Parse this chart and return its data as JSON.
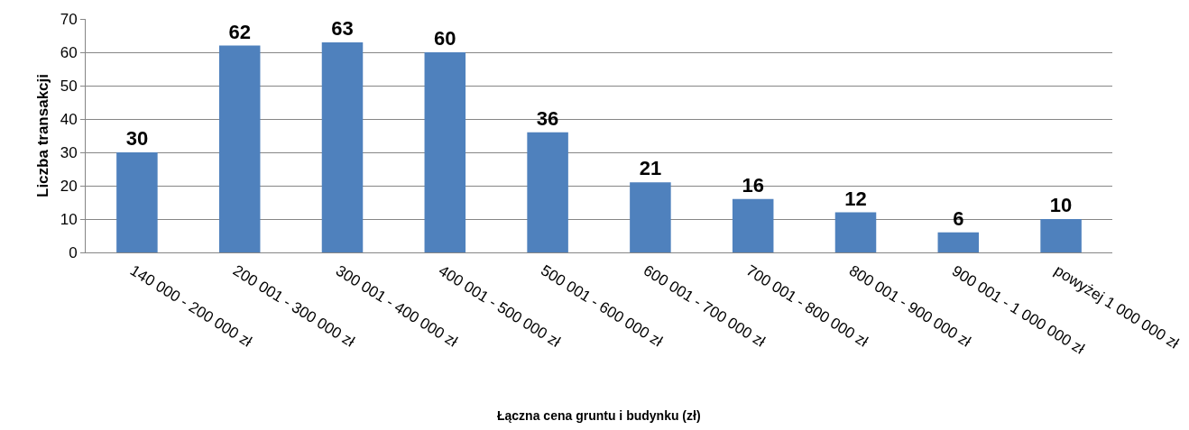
{
  "chart_data": {
    "type": "bar",
    "xlabel": "Łączna cena gruntu i budynku (zł)",
    "ylabel": "Liczba transakcji",
    "categories": [
      "140 000 - 200 000 zł",
      "200 001 - 300 000 zł",
      "300 001 - 400 000 zł",
      "400 001 - 500 000 zł",
      "500 001 - 600 000 zł",
      "600 001 - 700 000 zł",
      "700 001 - 800 000 zł",
      "800 001 - 900 000 zł",
      "900 001 - 1 000 000 zł",
      "powyżej 1 000 000 zł"
    ],
    "values": [
      30,
      62,
      63,
      60,
      36,
      21,
      16,
      12,
      6,
      10
    ],
    "color": "#4f81bd",
    "ylim": [
      0,
      70
    ],
    "yticks": [
      0,
      10,
      20,
      30,
      40,
      50,
      60,
      70
    ],
    "grid": "y",
    "data_labels": true
  }
}
